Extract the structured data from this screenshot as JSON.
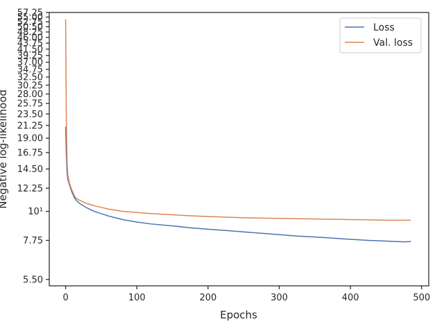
{
  "chart_data": {
    "type": "line",
    "xlabel": "Epochs",
    "ylabel": "Negative log-likelihood",
    "xlim": [
      -23,
      510
    ],
    "ylim": [
      5.2,
      57.25
    ],
    "y_scale": "log",
    "x_ticks": [
      0,
      100,
      200,
      300,
      400,
      500
    ],
    "x_tick_labels": [
      "0",
      "100",
      "200",
      "300",
      "400",
      "500"
    ],
    "y_ticks": [
      5.5,
      7.75,
      10,
      12.25,
      14.5,
      16.75,
      19.0,
      21.25,
      23.5,
      25.75,
      28.0,
      30.25,
      32.5,
      34.75,
      37.0,
      39.25,
      41.5,
      43.75,
      46.0,
      48.25,
      50.5,
      52.75,
      55.0,
      57.25
    ],
    "y_tick_labels": [
      "5.50",
      "7.75",
      "10¹",
      "12.25",
      "14.50",
      "16.75",
      "19.00",
      "21.25",
      "23.50",
      "25.75",
      "28.00",
      "30.25",
      "32.50",
      "34.75",
      "37.00",
      "39.25",
      "41.50",
      "43.75",
      "46.00",
      "48.25",
      "50.50",
      "52.75",
      "55.00",
      "57.25"
    ],
    "grid": false,
    "legend_position": "top-right",
    "series": [
      {
        "name": "Loss",
        "color": "#4c72b0",
        "x": [
          0,
          1,
          2,
          3,
          5,
          8,
          12,
          15,
          20,
          30,
          40,
          50,
          60,
          70,
          80,
          100,
          120,
          150,
          175,
          200,
          225,
          250,
          275,
          300,
          325,
          350,
          375,
          400,
          425,
          450,
          475,
          485
        ],
        "y": [
          21.0,
          16.5,
          14.0,
          13.3,
          12.7,
          12.0,
          11.3,
          11.0,
          10.7,
          10.3,
          10.0,
          9.8,
          9.6,
          9.45,
          9.3,
          9.1,
          8.95,
          8.8,
          8.65,
          8.55,
          8.45,
          8.35,
          8.25,
          8.15,
          8.05,
          7.98,
          7.9,
          7.82,
          7.75,
          7.7,
          7.65,
          7.67
        ]
      },
      {
        "name": "Val. loss",
        "color": "#dd8452",
        "x": [
          0,
          1,
          2,
          3,
          5,
          8,
          12,
          15,
          20,
          30,
          40,
          50,
          60,
          70,
          80,
          100,
          120,
          150,
          175,
          200,
          225,
          250,
          275,
          300,
          325,
          350,
          375,
          400,
          425,
          450,
          475,
          485
        ],
        "y": [
          54.0,
          22.0,
          15.5,
          13.8,
          12.9,
          12.2,
          11.5,
          11.2,
          11.0,
          10.7,
          10.5,
          10.35,
          10.2,
          10.1,
          10.0,
          9.9,
          9.8,
          9.7,
          9.62,
          9.55,
          9.5,
          9.45,
          9.42,
          9.4,
          9.37,
          9.35,
          9.32,
          9.3,
          9.28,
          9.25,
          9.25,
          9.25
        ]
      }
    ]
  }
}
